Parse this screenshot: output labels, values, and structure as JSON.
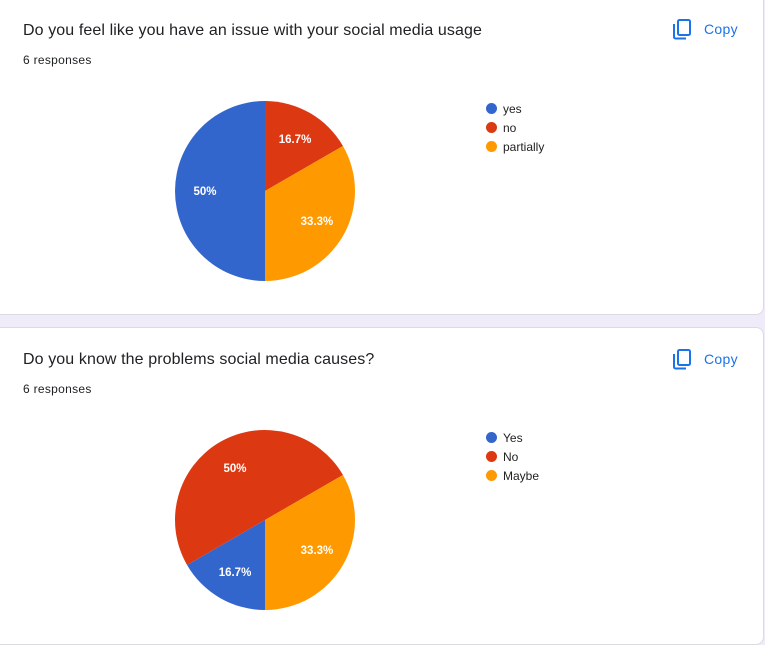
{
  "cards": [
    {
      "question": "Do you feel like you have an issue with your social media usage",
      "responses": "6 responses",
      "copy_label": "Copy"
    },
    {
      "question": "Do you know the problems social media causes?",
      "responses": "6 responses",
      "copy_label": "Copy"
    }
  ],
  "icons": {
    "copy": "copy-icon"
  },
  "colors": {
    "accent": "#1a73e8",
    "blue": "#3366cc",
    "red": "#dc3912",
    "orange": "#ff9900"
  },
  "chart_data": [
    {
      "type": "pie",
      "title": "Do you feel like you have an issue with your social media usage",
      "start_angle_deg": 90,
      "series": [
        {
          "name": "yes",
          "value": 3,
          "label": "50%",
          "color": "#3366cc"
        },
        {
          "name": "no",
          "value": 1,
          "label": "16.7%",
          "color": "#dc3912"
        },
        {
          "name": "partially",
          "value": 2,
          "label": "33.3%",
          "color": "#ff9900"
        }
      ],
      "legend": "right"
    },
    {
      "type": "pie",
      "title": "Do you know the problems social media causes?",
      "start_angle_deg": 90,
      "series": [
        {
          "name": "Yes",
          "value": 1,
          "label": "16.7%",
          "color": "#3366cc"
        },
        {
          "name": "No",
          "value": 3,
          "label": "50%",
          "color": "#dc3912"
        },
        {
          "name": "Maybe",
          "value": 2,
          "label": "33.3%",
          "color": "#ff9900"
        }
      ],
      "legend": "right"
    }
  ]
}
